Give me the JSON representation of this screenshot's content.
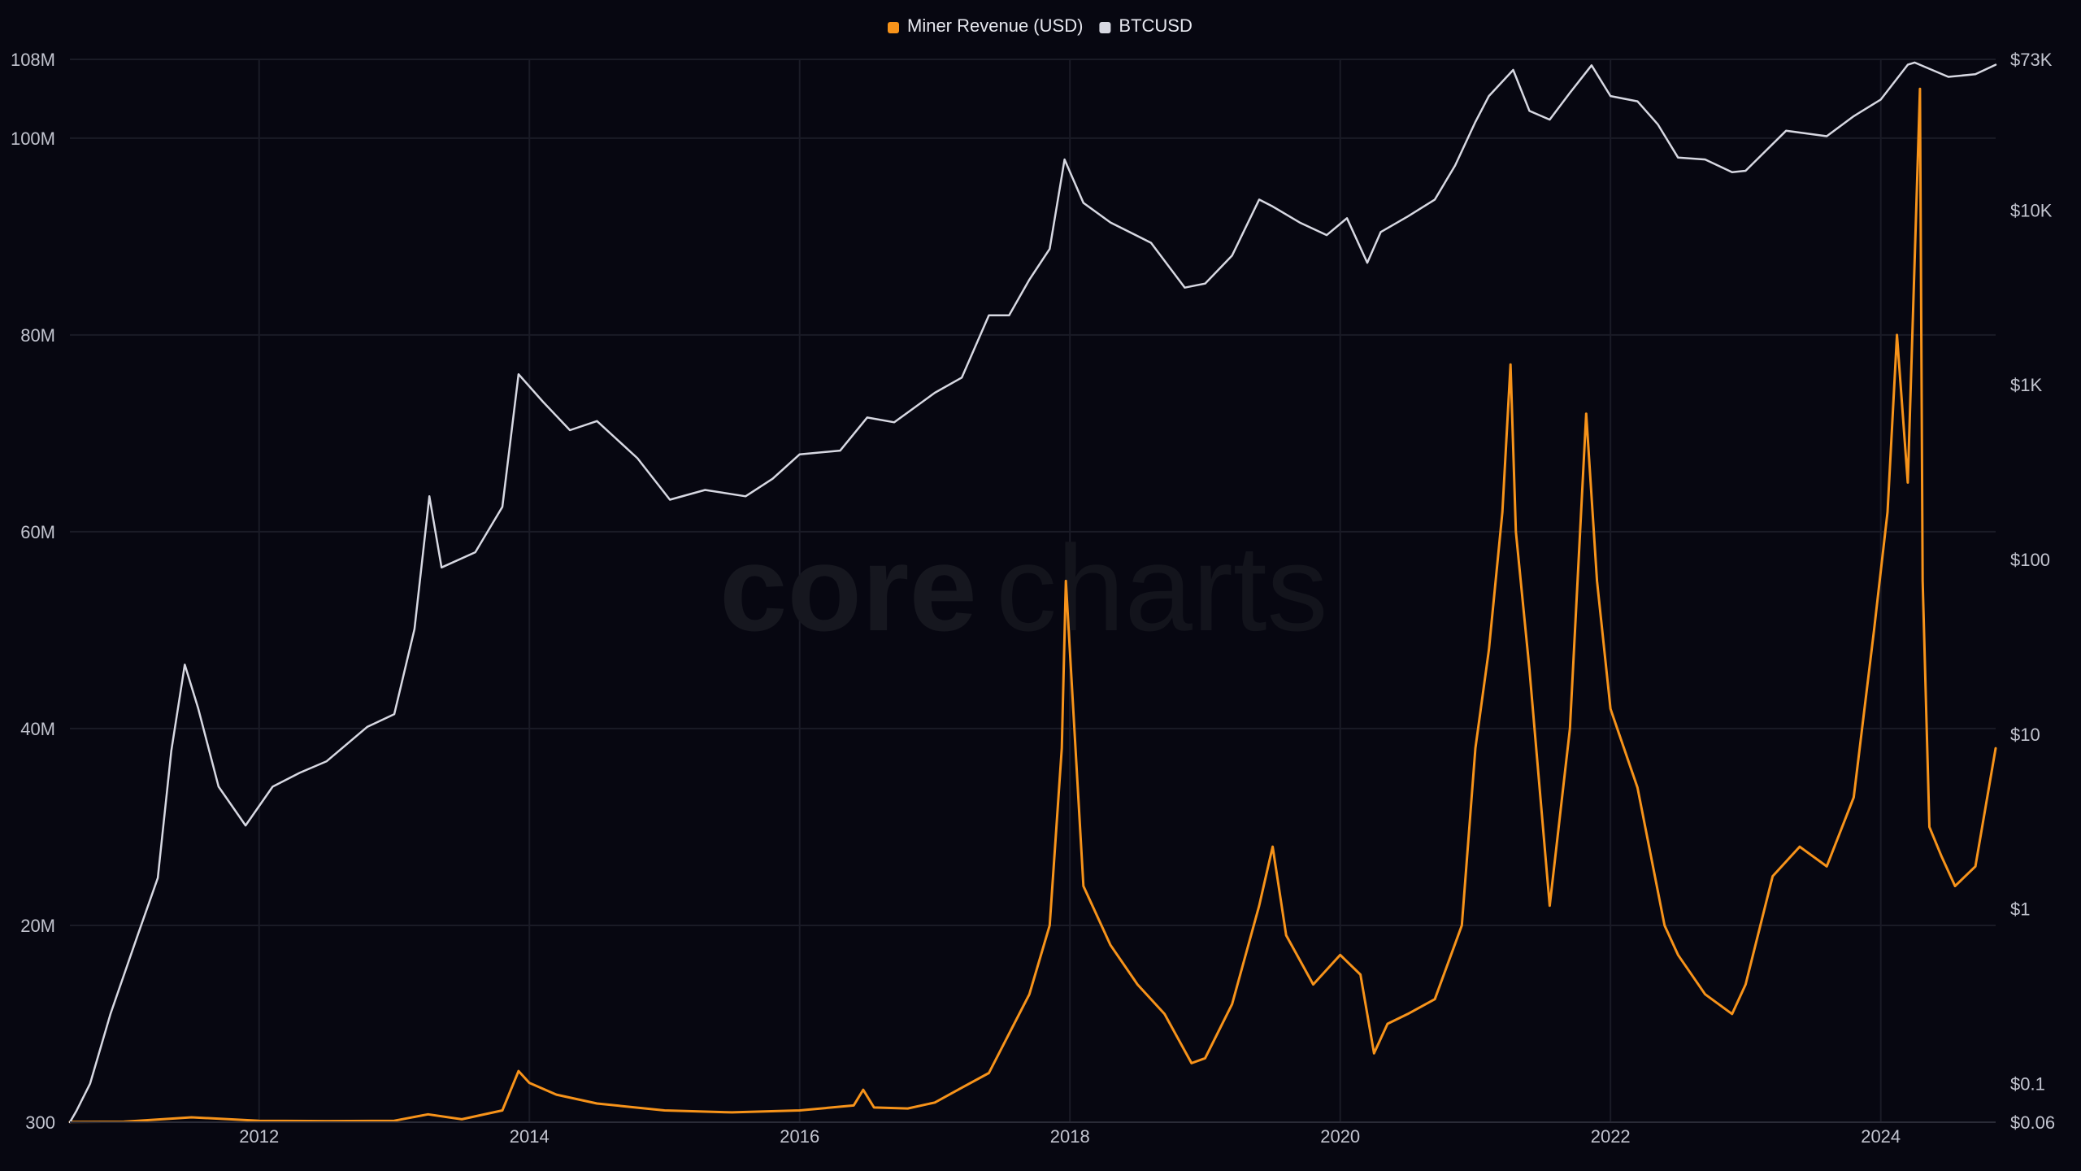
{
  "watermark": {
    "part1": "core",
    "part2": "charts"
  },
  "chart_data": {
    "type": "line",
    "legend": {
      "placement": "top-center",
      "entries": [
        {
          "label": "Miner Revenue (USD)",
          "color": "#f7931a"
        },
        {
          "label": "BTCUSD",
          "color": "#d7d8e2"
        }
      ]
    },
    "grid": true,
    "x_range": [
      2010.6,
      2024.85
    ],
    "x_ticks": [
      {
        "value": 2012,
        "label": "2012"
      },
      {
        "value": 2014,
        "label": "2014"
      },
      {
        "value": 2016,
        "label": "2016"
      },
      {
        "value": 2018,
        "label": "2018"
      },
      {
        "value": 2020,
        "label": "2020"
      },
      {
        "value": 2022,
        "label": "2022"
      },
      {
        "value": 2024,
        "label": "2024"
      }
    ],
    "y_left": {
      "ylim": [
        300,
        108000000
      ],
      "ticks": [
        {
          "value": 300,
          "label": "300"
        },
        {
          "value": 20000000,
          "label": "20M"
        },
        {
          "value": 40000000,
          "label": "40M"
        },
        {
          "value": 60000000,
          "label": "60M"
        },
        {
          "value": 80000000,
          "label": "80M"
        },
        {
          "value": 100000000,
          "label": "100M"
        },
        {
          "value": 108000000,
          "label": "108M"
        }
      ]
    },
    "y_right": {
      "scale": "log",
      "ylim": [
        0.06,
        73000
      ],
      "ticks": [
        {
          "value": 0.06,
          "label": "$0.06"
        },
        {
          "value": 0.1,
          "label": "$0.1"
        },
        {
          "value": 1,
          "label": "$1"
        },
        {
          "value": 10,
          "label": "$10"
        },
        {
          "value": 100,
          "label": "$100"
        },
        {
          "value": 1000,
          "label": "$1K"
        },
        {
          "value": 10000,
          "label": "$10K"
        },
        {
          "value": 73000,
          "label": "$73K"
        }
      ]
    },
    "series": [
      {
        "name": "Miner Revenue (USD)",
        "axis": "left",
        "color": "#f7931a",
        "x": [
          2010.6,
          2011.0,
          2011.5,
          2012.0,
          2012.5,
          2013.0,
          2013.25,
          2013.5,
          2013.8,
          2013.92,
          2014.0,
          2014.2,
          2014.5,
          2015.0,
          2015.5,
          2016.0,
          2016.4,
          2016.47,
          2016.55,
          2016.8,
          2017.0,
          2017.2,
          2017.4,
          2017.55,
          2017.7,
          2017.85,
          2017.94,
          2017.97,
          2018.1,
          2018.3,
          2018.5,
          2018.7,
          2018.9,
          2019.0,
          2019.2,
          2019.4,
          2019.5,
          2019.6,
          2019.8,
          2020.0,
          2020.15,
          2020.25,
          2020.35,
          2020.5,
          2020.7,
          2020.9,
          2021.0,
          2021.1,
          2021.2,
          2021.26,
          2021.3,
          2021.4,
          2021.55,
          2021.7,
          2021.82,
          2021.9,
          2022.0,
          2022.2,
          2022.4,
          2022.5,
          2022.7,
          2022.9,
          2023.0,
          2023.2,
          2023.4,
          2023.6,
          2023.8,
          2023.95,
          2024.05,
          2024.12,
          2024.2,
          2024.29,
          2024.31,
          2024.36,
          2024.45,
          2024.55,
          2024.7,
          2024.85
        ],
        "values": [
          30000,
          50000,
          500000,
          150000,
          120000,
          150000,
          800000,
          300000,
          1200000,
          5200000,
          4000000,
          2800000,
          1900000,
          1200000,
          1000000,
          1200000,
          1700000,
          3300000,
          1500000,
          1400000,
          2000000,
          3500000,
          5000000,
          9000000,
          13000000,
          20000000,
          38000000,
          55000000,
          24000000,
          18000000,
          14000000,
          11000000,
          6000000,
          6500000,
          12000000,
          22000000,
          28000000,
          19000000,
          14000000,
          17000000,
          15000000,
          7000000,
          10000000,
          11000000,
          12500000,
          20000000,
          38000000,
          48000000,
          62000000,
          77000000,
          60000000,
          46000000,
          22000000,
          40000000,
          72000000,
          55000000,
          42000000,
          34000000,
          20000000,
          17000000,
          13000000,
          11000000,
          14000000,
          25000000,
          28000000,
          26000000,
          33000000,
          50000000,
          62000000,
          80000000,
          65000000,
          105000000,
          55000000,
          30000000,
          27000000,
          24000000,
          26000000,
          38000000
        ]
      },
      {
        "name": "BTCUSD",
        "axis": "right",
        "color": "#d7d8e2",
        "x": [
          2010.6,
          2010.65,
          2010.75,
          2010.9,
          2011.1,
          2011.25,
          2011.35,
          2011.45,
          2011.55,
          2011.7,
          2011.9,
          2012.1,
          2012.3,
          2012.5,
          2012.8,
          2013.0,
          2013.15,
          2013.26,
          2013.35,
          2013.6,
          2013.8,
          2013.92,
          2014.1,
          2014.3,
          2014.5,
          2014.8,
          2015.04,
          2015.3,
          2015.6,
          2015.8,
          2016.0,
          2016.3,
          2016.5,
          2016.7,
          2017.0,
          2017.2,
          2017.4,
          2017.55,
          2017.7,
          2017.85,
          2017.96,
          2018.1,
          2018.3,
          2018.6,
          2018.85,
          2019.0,
          2019.2,
          2019.4,
          2019.5,
          2019.7,
          2019.9,
          2020.05,
          2020.2,
          2020.3,
          2020.5,
          2020.7,
          2020.85,
          2021.0,
          2021.1,
          2021.28,
          2021.4,
          2021.55,
          2021.7,
          2021.86,
          2022.0,
          2022.2,
          2022.35,
          2022.5,
          2022.7,
          2022.9,
          2023.0,
          2023.3,
          2023.6,
          2023.8,
          2024.0,
          2024.2,
          2024.25,
          2024.5,
          2024.7,
          2024.85
        ],
        "values": [
          0.06,
          0.07,
          0.1,
          0.25,
          0.7,
          1.5,
          8,
          25,
          14,
          5,
          3,
          5,
          6,
          7,
          11,
          13,
          40,
          230,
          90,
          110,
          200,
          1150,
          800,
          550,
          620,
          380,
          220,
          250,
          230,
          290,
          400,
          420,
          650,
          610,
          900,
          1100,
          2500,
          2500,
          4000,
          6000,
          19500,
          11000,
          8500,
          6500,
          3600,
          3800,
          5500,
          11500,
          10500,
          8500,
          7200,
          9000,
          5000,
          7500,
          9200,
          11500,
          18000,
          32000,
          45000,
          63500,
          37000,
          33000,
          47000,
          67500,
          45000,
          42000,
          31000,
          20000,
          19500,
          16500,
          16800,
          28500,
          26500,
          34500,
          43000,
          68000,
          70000,
          58000,
          60000,
          68000
        ]
      }
    ]
  }
}
